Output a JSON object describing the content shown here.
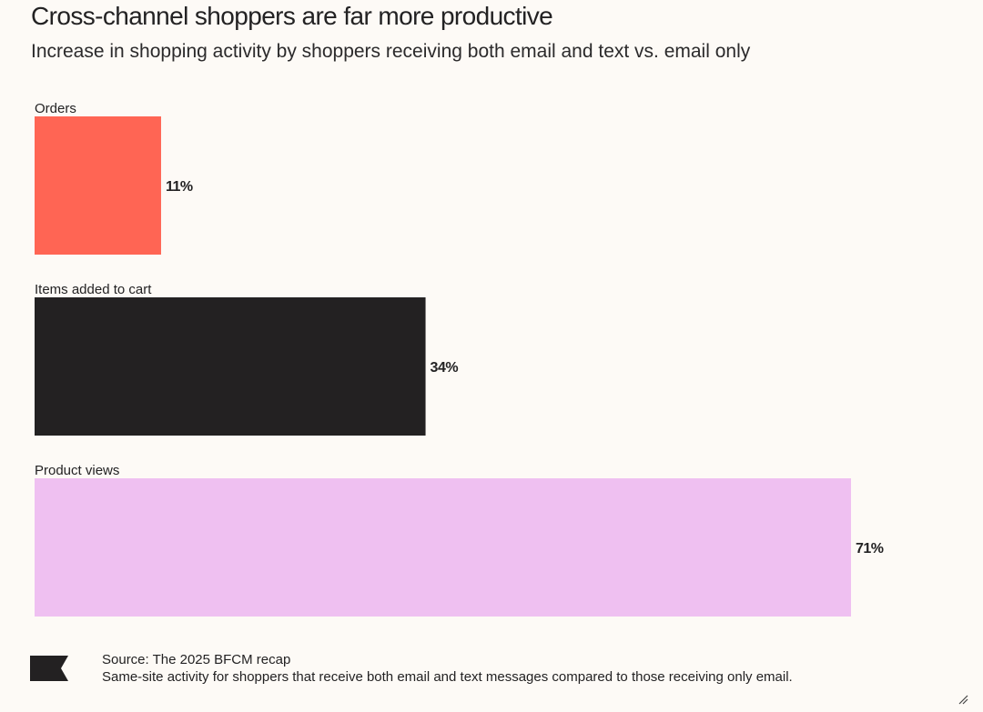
{
  "header": {
    "title": "Cross-channel shoppers are far more productive",
    "subtitle": "Increase in shopping activity by shoppers receiving both email and text vs. email only"
  },
  "chart_data": {
    "type": "bar",
    "orientation": "horizontal",
    "title": "Cross-channel shoppers are far more productive",
    "subtitle": "Increase in shopping activity by shoppers receiving both email and text vs. email only",
    "categories": [
      "Orders",
      "Items added to cart",
      "Product views"
    ],
    "values": [
      11,
      34,
      71
    ],
    "value_labels": [
      "11%",
      "34%",
      "71%"
    ],
    "colors": [
      "#ff6554",
      "#232122",
      "#efc0f1"
    ],
    "unit": "%",
    "xlim": [
      0,
      71
    ],
    "grid": false,
    "legend": "none"
  },
  "footer": {
    "source": "Source: The 2025 BFCM recap",
    "note": "Same-site activity for shoppers that receive both email and text messages compared to those receiving only email.",
    "logo_icon": "flag-icon"
  }
}
